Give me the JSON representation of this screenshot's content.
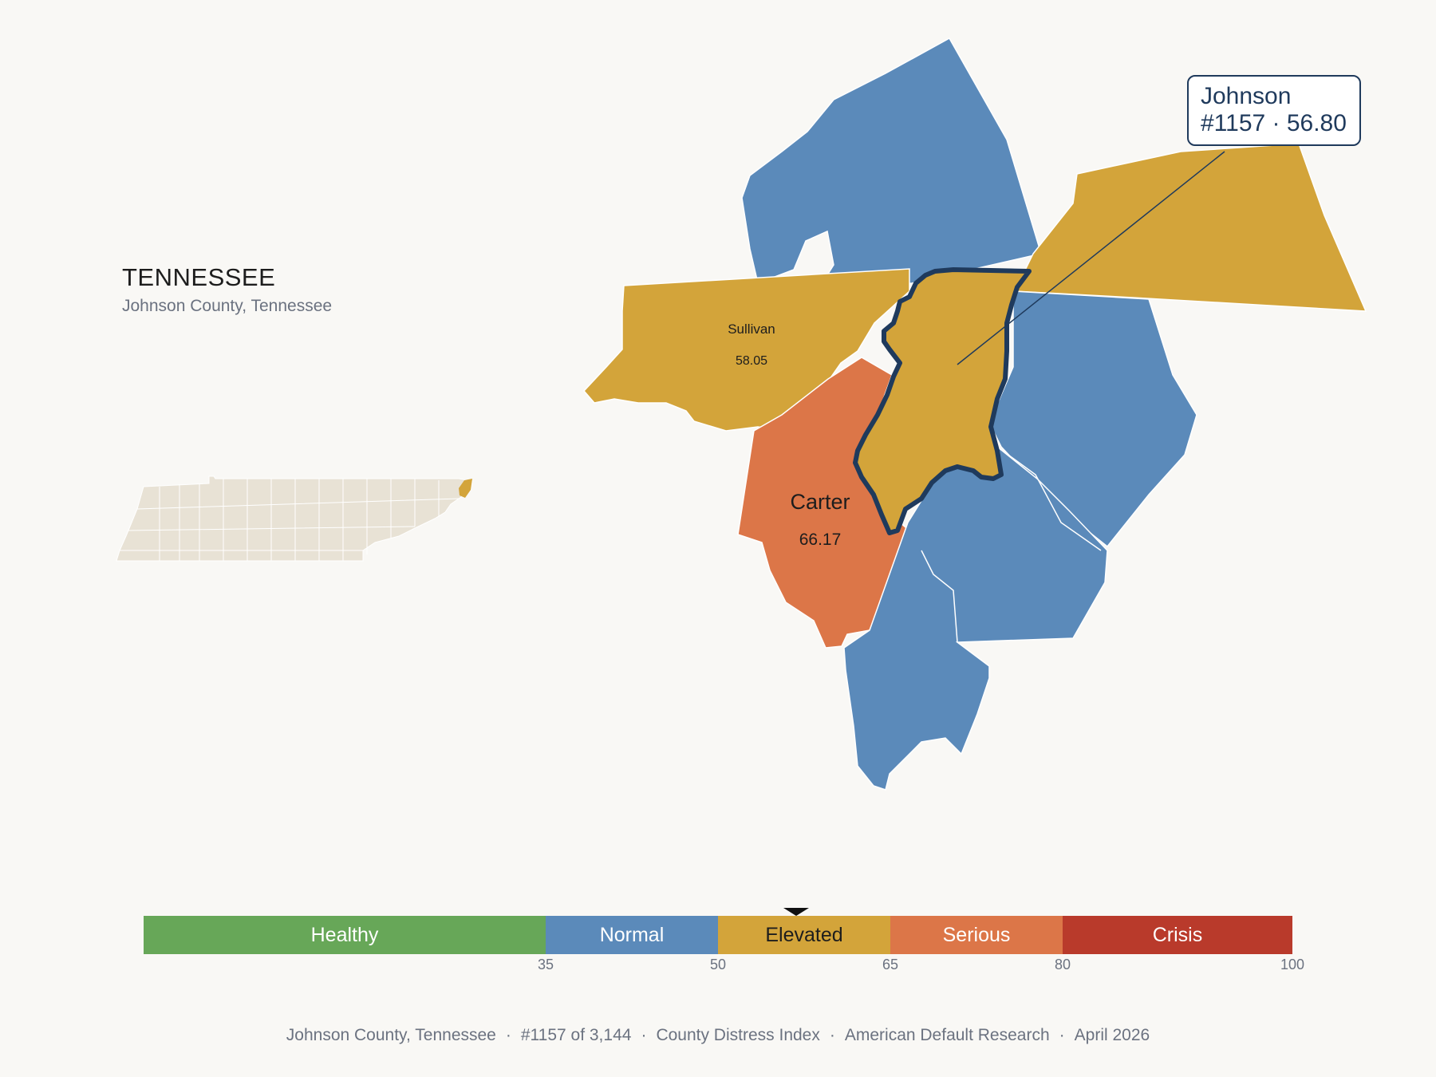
{
  "state": {
    "title": "TENNESSEE",
    "subtitle": "Johnson County, Tennessee"
  },
  "counties": {
    "sullivan": {
      "name": "Sullivan",
      "score": "58.05"
    },
    "carter": {
      "name": "Carter",
      "score": "66.17"
    },
    "johnson": {
      "name": "Johnson",
      "rank_score": "#1157 · 56.80"
    }
  },
  "callout": {
    "line1": "Johnson",
    "line2": "#1157 · 56.80"
  },
  "scale": {
    "labels": [
      "Healthy",
      "Normal",
      "Elevated",
      "Serious",
      "Crisis"
    ],
    "ticks": [
      "35",
      "50",
      "65",
      "80",
      "100"
    ],
    "marker_value": 56.8
  },
  "footer": {
    "parts": [
      "Johnson County, Tennessee",
      "#1157 of 3,144",
      "County Distress Index",
      "American Default Research",
      "April 2026"
    ]
  },
  "colors": {
    "healthy": "#67a758",
    "normal": "#5b8aba",
    "elevated": "#d3a43a",
    "serious": "#dc7648",
    "crisis": "#b93a2b",
    "highlight": "#1f3a5c",
    "state_fill": "#e8e2d5"
  }
}
